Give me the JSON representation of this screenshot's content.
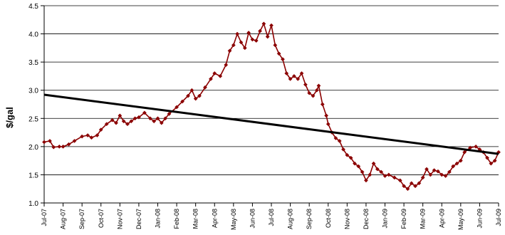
{
  "chart_data": {
    "type": "line",
    "title": "",
    "xlabel": "",
    "ylabel": "$/gal",
    "ylim": [
      1.0,
      4.5
    ],
    "yticks": [
      "1.0",
      "1.5",
      "2.0",
      "2.5",
      "3.0",
      "3.5",
      "4.0",
      "4.5"
    ],
    "grid": true,
    "legend": "none",
    "x_tick_labels": [
      "Jul-07",
      "Aug-07",
      "Sep-07",
      "Oct-07",
      "Nov-07",
      "Dec-07",
      "Jan-08",
      "Feb-08",
      "Mar-08",
      "Apr-08",
      "May-08",
      "Jun-08",
      "Jul-08",
      "Aug-08",
      "Sep-08",
      "Oct-08",
      "Nov-08",
      "Dec-08",
      "Jan-09",
      "Feb-09",
      "Mar-09",
      "Apr-09",
      "May-09",
      "Jun-09",
      "Jul-09"
    ],
    "series": [
      {
        "color": "#8b0000",
        "marker": "diamond",
        "points": [
          [
            0.0,
            2.08
          ],
          [
            0.3,
            2.1
          ],
          [
            0.5,
            1.99
          ],
          [
            0.8,
            2.0
          ],
          [
            1.0,
            2.0
          ],
          [
            1.3,
            2.04
          ],
          [
            1.6,
            2.1
          ],
          [
            2.0,
            2.18
          ],
          [
            2.3,
            2.2
          ],
          [
            2.5,
            2.16
          ],
          [
            2.8,
            2.2
          ],
          [
            3.0,
            2.3
          ],
          [
            3.3,
            2.4
          ],
          [
            3.6,
            2.47
          ],
          [
            3.8,
            2.42
          ],
          [
            4.0,
            2.55
          ],
          [
            4.2,
            2.45
          ],
          [
            4.4,
            2.4
          ],
          [
            4.6,
            2.45
          ],
          [
            4.8,
            2.5
          ],
          [
            5.0,
            2.52
          ],
          [
            5.3,
            2.6
          ],
          [
            5.6,
            2.5
          ],
          [
            5.8,
            2.45
          ],
          [
            6.0,
            2.5
          ],
          [
            6.2,
            2.42
          ],
          [
            6.4,
            2.5
          ],
          [
            6.6,
            2.58
          ],
          [
            7.0,
            2.7
          ],
          [
            7.3,
            2.8
          ],
          [
            7.6,
            2.9
          ],
          [
            7.8,
            3.0
          ],
          [
            8.0,
            2.85
          ],
          [
            8.2,
            2.9
          ],
          [
            8.5,
            3.05
          ],
          [
            8.8,
            3.2
          ],
          [
            9.0,
            3.3
          ],
          [
            9.3,
            3.25
          ],
          [
            9.6,
            3.45
          ],
          [
            9.8,
            3.7
          ],
          [
            10.0,
            3.8
          ],
          [
            10.2,
            4.0
          ],
          [
            10.4,
            3.85
          ],
          [
            10.6,
            3.75
          ],
          [
            10.8,
            4.02
          ],
          [
            11.0,
            3.9
          ],
          [
            11.2,
            3.88
          ],
          [
            11.4,
            4.05
          ],
          [
            11.6,
            4.18
          ],
          [
            11.8,
            3.95
          ],
          [
            12.0,
            4.15
          ],
          [
            12.2,
            3.8
          ],
          [
            12.4,
            3.65
          ],
          [
            12.6,
            3.55
          ],
          [
            12.8,
            3.3
          ],
          [
            13.0,
            3.2
          ],
          [
            13.2,
            3.25
          ],
          [
            13.4,
            3.2
          ],
          [
            13.6,
            3.3
          ],
          [
            13.8,
            3.1
          ],
          [
            14.0,
            2.95
          ],
          [
            14.2,
            2.9
          ],
          [
            14.4,
            3.0
          ],
          [
            14.5,
            3.08
          ],
          [
            14.7,
            2.75
          ],
          [
            14.9,
            2.55
          ],
          [
            15.0,
            2.4
          ],
          [
            15.2,
            2.25
          ],
          [
            15.4,
            2.15
          ],
          [
            15.6,
            2.1
          ],
          [
            15.8,
            1.95
          ],
          [
            16.0,
            1.85
          ],
          [
            16.2,
            1.8
          ],
          [
            16.4,
            1.7
          ],
          [
            16.6,
            1.65
          ],
          [
            16.8,
            1.55
          ],
          [
            17.0,
            1.4
          ],
          [
            17.2,
            1.5
          ],
          [
            17.4,
            1.7
          ],
          [
            17.6,
            1.6
          ],
          [
            17.8,
            1.55
          ],
          [
            18.0,
            1.48
          ],
          [
            18.2,
            1.5
          ],
          [
            18.5,
            1.45
          ],
          [
            18.8,
            1.4
          ],
          [
            19.0,
            1.3
          ],
          [
            19.2,
            1.25
          ],
          [
            19.4,
            1.35
          ],
          [
            19.6,
            1.3
          ],
          [
            19.8,
            1.35
          ],
          [
            20.0,
            1.45
          ],
          [
            20.2,
            1.6
          ],
          [
            20.4,
            1.5
          ],
          [
            20.6,
            1.58
          ],
          [
            20.8,
            1.56
          ],
          [
            21.0,
            1.5
          ],
          [
            21.2,
            1.48
          ],
          [
            21.4,
            1.55
          ],
          [
            21.6,
            1.65
          ],
          [
            21.8,
            1.7
          ],
          [
            22.0,
            1.75
          ],
          [
            22.2,
            1.9
          ],
          [
            22.5,
            1.98
          ],
          [
            22.8,
            2.0
          ],
          [
            23.0,
            1.95
          ],
          [
            23.2,
            1.9
          ],
          [
            23.4,
            1.8
          ],
          [
            23.6,
            1.7
          ],
          [
            23.8,
            1.75
          ],
          [
            24.0,
            1.9
          ]
        ]
      },
      {
        "type": "trendline",
        "color": "#000000",
        "points": [
          [
            0.0,
            2.92
          ],
          [
            24.0,
            1.87
          ]
        ]
      }
    ]
  }
}
